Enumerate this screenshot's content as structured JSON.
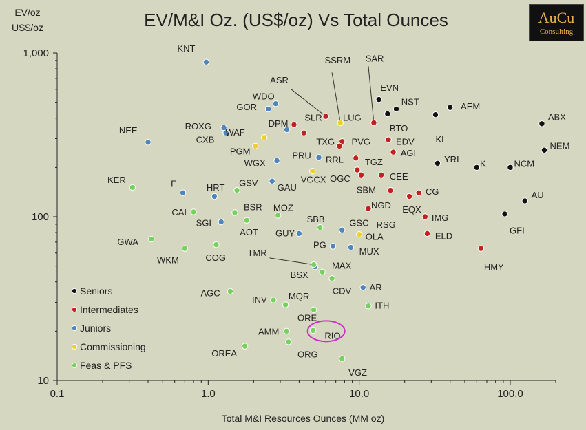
{
  "chart_data": {
    "type": "scatter",
    "title": "EV/M&I Oz. (US$/oz) Vs Total Ounces",
    "ylabel_line1": "EV/oz",
    "ylabel_line2": "US$/oz",
    "xlabel": "Total M&I Resources Ounces (MM oz)",
    "x_scale": "log",
    "y_scale": "log",
    "xlim": [
      0.1,
      200
    ],
    "ylim": [
      10,
      1000
    ],
    "x_ticks": [
      {
        "value": 0.1,
        "label": "0.1"
      },
      {
        "value": 1,
        "label": "1.0"
      },
      {
        "value": 10,
        "label": "10.0"
      },
      {
        "value": 100,
        "label": "100.0"
      }
    ],
    "y_ticks": [
      {
        "value": 10,
        "label": "10"
      },
      {
        "value": 100,
        "label": "100"
      },
      {
        "value": 1000,
        "label": "1,000"
      }
    ],
    "legend_position": "bottom-left",
    "grid": false,
    "highlight": {
      "label": "RIO",
      "color": "#cc2fc8"
    },
    "series": [
      {
        "name": "Seniors",
        "color": "#111111",
        "points": [
          {
            "label": "EVN",
            "x": 13.5,
            "y": 520,
            "lx": 13.8,
            "ly": 610,
            "anchor": "start"
          },
          {
            "label": "NST",
            "x": 17.6,
            "y": 455,
            "lx": 19.0,
            "ly": 500,
            "anchor": "start"
          },
          {
            "label": "AEM",
            "x": 40,
            "y": 465,
            "lx": 47,
            "ly": 470,
            "anchor": "start"
          },
          {
            "label": "BTO",
            "x": 15.4,
            "y": 425,
            "lx": 15.9,
            "ly": 345,
            "anchor": "start"
          },
          {
            "label": "KL",
            "x": 32,
            "y": 420,
            "lx": 32,
            "ly": 295,
            "anchor": "start"
          },
          {
            "label": "ABX",
            "x": 162,
            "y": 370,
            "lx": 178,
            "ly": 405,
            "anchor": "start"
          },
          {
            "label": "NEM",
            "x": 168,
            "y": 255,
            "lx": 183,
            "ly": 270,
            "anchor": "start"
          },
          {
            "label": "YRI",
            "x": 33,
            "y": 212,
            "lx": 36.5,
            "ly": 223,
            "anchor": "start"
          },
          {
            "label": "K",
            "x": 60,
            "y": 200,
            "lx": 63,
            "ly": 210,
            "anchor": "start"
          },
          {
            "label": "NCM",
            "x": 100,
            "y": 200,
            "lx": 106,
            "ly": 210,
            "anchor": "start"
          },
          {
            "label": "AU",
            "x": 125,
            "y": 125,
            "lx": 138,
            "ly": 135,
            "anchor": "start"
          },
          {
            "label": "GFI",
            "x": 92,
            "y": 104,
            "lx": 99,
            "ly": 82,
            "anchor": "start"
          }
        ]
      },
      {
        "name": "Intermediates",
        "color": "#c42020",
        "points": [
          {
            "label": "ASR",
            "x": 6.0,
            "y": 410,
            "lx": 3.4,
            "ly": 680,
            "anchor": "end"
          },
          {
            "label": "SAR",
            "x": 12.5,
            "y": 375,
            "lx": 11.0,
            "ly": 920,
            "anchor": "start"
          },
          {
            "label": "SLR",
            "x": 3.7,
            "y": 365,
            "lx": 4.35,
            "ly": 400,
            "anchor": "start"
          },
          {
            "label": "TXG",
            "x": 4.3,
            "y": 325,
            "lx": 5.2,
            "ly": 285,
            "anchor": "start"
          },
          {
            "label": "PVG",
            "x": 7.7,
            "y": 288,
            "lx": 8.9,
            "ly": 285,
            "anchor": "start"
          },
          {
            "label": "EDV",
            "x": 15.6,
            "y": 295,
            "lx": 17.5,
            "ly": 285,
            "anchor": "start"
          },
          {
            "label": "RRL",
            "x": 7.4,
            "y": 270,
            "lx": 6.0,
            "ly": 222,
            "anchor": "start"
          },
          {
            "label": "AGI",
            "x": 16.8,
            "y": 248,
            "lx": 18.8,
            "ly": 243,
            "anchor": "start"
          },
          {
            "label": "TGZ",
            "x": 9.5,
            "y": 228,
            "lx": 10.9,
            "ly": 215,
            "anchor": "start"
          },
          {
            "label": "OGC",
            "x": 9.7,
            "y": 193,
            "lx": 6.4,
            "ly": 170,
            "anchor": "start"
          },
          {
            "label": "CEE",
            "x": 14,
            "y": 180,
            "lx": 15.9,
            "ly": 175,
            "anchor": "start"
          },
          {
            "label": "SBM",
            "x": 10.3,
            "y": 180,
            "lx": 9.6,
            "ly": 145,
            "anchor": "start"
          },
          {
            "label": "CG",
            "x": 24.8,
            "y": 140,
            "lx": 27.5,
            "ly": 142,
            "anchor": "start"
          },
          {
            "label": "NGD",
            "x": 16.1,
            "y": 145,
            "lx": 12.0,
            "ly": 117,
            "anchor": "start"
          },
          {
            "label": "EQX",
            "x": 21.5,
            "y": 133,
            "lx": 19.3,
            "ly": 110,
            "anchor": "start"
          },
          {
            "label": "RSG",
            "x": 11.5,
            "y": 112,
            "lx": 13.0,
            "ly": 89,
            "anchor": "start"
          },
          {
            "label": "IMG",
            "x": 27.3,
            "y": 100,
            "lx": 30.2,
            "ly": 98,
            "anchor": "start"
          },
          {
            "label": "ELD",
            "x": 28.2,
            "y": 79,
            "lx": 31.8,
            "ly": 76,
            "anchor": "start"
          },
          {
            "label": "HMY",
            "x": 64,
            "y": 64,
            "lx": 67,
            "ly": 49,
            "anchor": "start"
          }
        ]
      },
      {
        "name": "Juniors",
        "color": "#4f86bd",
        "points": [
          {
            "label": "KNT",
            "x": 0.97,
            "y": 880,
            "lx": 0.82,
            "ly": 1060,
            "anchor": "end"
          },
          {
            "label": "WDO",
            "x": 2.8,
            "y": 490,
            "lx": 2.75,
            "ly": 540,
            "anchor": "end"
          },
          {
            "label": "GOR",
            "x": 2.5,
            "y": 455,
            "lx": 2.1,
            "ly": 465,
            "anchor": "end"
          },
          {
            "label": "DPM",
            "x": 3.32,
            "y": 340,
            "lx": 2.5,
            "ly": 370,
            "anchor": "start"
          },
          {
            "label": "ROXG",
            "x": 1.27,
            "y": 350,
            "lx": 1.05,
            "ly": 355,
            "anchor": "end"
          },
          {
            "label": "CXB",
            "x": 1.31,
            "y": 325,
            "lx": 1.1,
            "ly": 294,
            "anchor": "end"
          },
          {
            "label": "NEE",
            "x": 0.4,
            "y": 285,
            "lx": 0.34,
            "ly": 335,
            "anchor": "end"
          },
          {
            "label": "PRU",
            "x": 5.4,
            "y": 230,
            "lx": 3.6,
            "ly": 235,
            "anchor": "start"
          },
          {
            "label": "WGX",
            "x": 2.85,
            "y": 220,
            "lx": 2.4,
            "ly": 212,
            "anchor": "end"
          },
          {
            "label": "GAU",
            "x": 2.65,
            "y": 165,
            "lx": 2.87,
            "ly": 150,
            "anchor": "start"
          },
          {
            "label": "F",
            "x": 0.68,
            "y": 140,
            "lx": 0.615,
            "ly": 158,
            "anchor": "end"
          },
          {
            "label": "HRT",
            "x": 1.1,
            "y": 133,
            "lx": 0.975,
            "ly": 150,
            "anchor": "start"
          },
          {
            "label": "SGI",
            "x": 1.22,
            "y": 93,
            "lx": 1.05,
            "ly": 91,
            "anchor": "end"
          },
          {
            "label": "GSC",
            "x": 7.7,
            "y": 83,
            "lx": 8.6,
            "ly": 91,
            "anchor": "start"
          },
          {
            "label": "GUY",
            "x": 4.0,
            "y": 79,
            "lx": 3.75,
            "ly": 79,
            "anchor": "end"
          },
          {
            "label": "PG",
            "x": 6.7,
            "y": 66,
            "lx": 6.05,
            "ly": 67,
            "anchor": "end"
          },
          {
            "label": "MUX",
            "x": 8.8,
            "y": 65,
            "lx": 10.0,
            "ly": 61,
            "anchor": "start"
          },
          {
            "label": "BSX",
            "x": 5.1,
            "y": 49.5,
            "lx": 4.6,
            "ly": 44,
            "anchor": "end"
          },
          {
            "label": "AR",
            "x": 10.6,
            "y": 37,
            "lx": 11.7,
            "ly": 37,
            "anchor": "start"
          }
        ]
      },
      {
        "name": "Commissioning",
        "color": "#ecd12a",
        "points": [
          {
            "label": "LUG",
            "x": 7.5,
            "y": 375,
            "lx": 7.8,
            "ly": 400,
            "anchor": "start"
          },
          {
            "label": "WAF",
            "x": 2.35,
            "y": 305,
            "lx": 1.3,
            "ly": 325,
            "anchor": "start"
          },
          {
            "label": "PGM",
            "x": 2.05,
            "y": 270,
            "lx": 1.9,
            "ly": 250,
            "anchor": "end"
          },
          {
            "label": "VGCX",
            "x": 4.9,
            "y": 190,
            "lx": 4.1,
            "ly": 168,
            "anchor": "start"
          },
          {
            "label": "OLA",
            "x": 10.0,
            "y": 78,
            "lx": 11.0,
            "ly": 75,
            "anchor": "start"
          }
        ]
      },
      {
        "name": "Feas & PFS",
        "color": "#77d15f",
        "points": [
          {
            "label": "KER",
            "x": 0.315,
            "y": 151,
            "lx": 0.285,
            "ly": 167,
            "anchor": "end"
          },
          {
            "label": "GSV",
            "x": 1.55,
            "y": 145,
            "lx": 1.6,
            "ly": 160,
            "anchor": "start"
          },
          {
            "label": "CAI",
            "x": 0.8,
            "y": 107,
            "lx": 0.72,
            "ly": 106,
            "anchor": "end"
          },
          {
            "label": "BSR",
            "x": 1.5,
            "y": 106,
            "lx": 1.72,
            "ly": 114,
            "anchor": "start"
          },
          {
            "label": "MOZ",
            "x": 2.9,
            "y": 102,
            "lx": 2.7,
            "ly": 113,
            "anchor": "start"
          },
          {
            "label": "SBB",
            "x": 5.5,
            "y": 86,
            "lx": 4.5,
            "ly": 96,
            "anchor": "start"
          },
          {
            "label": "AOT",
            "x": 1.8,
            "y": 95,
            "lx": 1.62,
            "ly": 80,
            "anchor": "start"
          },
          {
            "label": "GWA",
            "x": 0.42,
            "y": 73,
            "lx": 0.345,
            "ly": 70,
            "anchor": "end"
          },
          {
            "label": "WKM",
            "x": 0.7,
            "y": 64,
            "lx": 0.64,
            "ly": 54,
            "anchor": "end"
          },
          {
            "label": "COG",
            "x": 1.13,
            "y": 67.5,
            "lx": 0.96,
            "ly": 56,
            "anchor": "start"
          },
          {
            "label": "MAX",
            "x": 5.7,
            "y": 46,
            "lx": 6.6,
            "ly": 50,
            "anchor": "start"
          },
          {
            "label": "TMR",
            "x": 5.0,
            "y": 51,
            "lx": 2.45,
            "ly": 60,
            "anchor": "end"
          },
          {
            "label": "CDV",
            "x": 6.6,
            "y": 42,
            "lx": 6.65,
            "ly": 35,
            "anchor": "start"
          },
          {
            "label": "AGC",
            "x": 1.4,
            "y": 35,
            "lx": 1.2,
            "ly": 34,
            "anchor": "end"
          },
          {
            "label": "INV",
            "x": 2.7,
            "y": 31,
            "lx": 2.45,
            "ly": 31,
            "anchor": "end"
          },
          {
            "label": "MQR",
            "x": 3.25,
            "y": 29,
            "lx": 3.4,
            "ly": 32.5,
            "anchor": "start"
          },
          {
            "label": "ITH",
            "x": 11.5,
            "y": 28.5,
            "lx": 12.7,
            "ly": 28.5,
            "anchor": "start"
          },
          {
            "label": "ORE",
            "x": 5.0,
            "y": 27,
            "lx": 3.9,
            "ly": 24,
            "anchor": "start"
          },
          {
            "label": "AMM",
            "x": 3.3,
            "y": 20,
            "lx": 2.95,
            "ly": 19.8,
            "anchor": "end"
          },
          {
            "label": "RIO",
            "x": 4.95,
            "y": 20.2,
            "lx": 5.9,
            "ly": 18.7,
            "anchor": "start"
          },
          {
            "label": "ORG",
            "x": 3.4,
            "y": 17.2,
            "lx": 3.9,
            "ly": 14.4,
            "anchor": "start"
          },
          {
            "label": "OREA",
            "x": 1.75,
            "y": 16.2,
            "lx": 1.55,
            "ly": 14.6,
            "anchor": "end"
          },
          {
            "label": "VGZ",
            "x": 7.7,
            "y": 13.6,
            "lx": 8.5,
            "ly": 11.1,
            "anchor": "start"
          }
        ]
      }
    ],
    "leaders": [
      {
        "from": "ASR",
        "to": "ASR",
        "lx": 3.55,
        "ly": 600
      },
      {
        "from": "SSRM",
        "to": "LUG",
        "lx": 6.6,
        "ly": 760
      },
      {
        "from": "SAR",
        "to": "SAR",
        "lx": 11.5,
        "ly": 830
      },
      {
        "from": "TMR",
        "to": "TMR",
        "lx": 2.55,
        "ly": 56
      }
    ],
    "annotations": [
      {
        "label": "SSRM",
        "x": 7.2,
        "y": 900
      }
    ]
  },
  "logo": {
    "line1": "AuCu",
    "line2": "Consulting"
  }
}
